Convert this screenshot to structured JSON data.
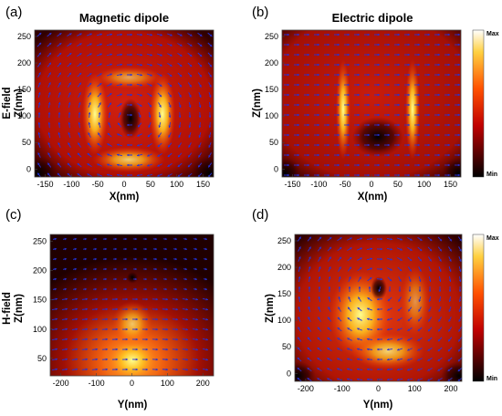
{
  "figure": {
    "row_labels": [
      "E-field",
      "H-field"
    ],
    "colorbar": {
      "max_label": "Max",
      "min_label": "Min",
      "colormap": "hot"
    },
    "arrow_color": "#2233dd"
  },
  "chart_data": [
    {
      "panel": "(a)",
      "type": "heatmap",
      "title": "Magnetic dipole",
      "xlabel": "X(nm)",
      "ylabel": "Z(nm)",
      "xlim": [
        -170,
        170
      ],
      "ylim": [
        -15,
        262
      ],
      "xticks": [
        "-150",
        "-100",
        "-50",
        "0",
        "50",
        "100",
        "150"
      ],
      "yticks": [
        "0",
        "50",
        "100",
        "150",
        "200",
        "250"
      ],
      "field": "E-field",
      "vector_pattern": "circulating loop around x=0, z=90",
      "colorbar": false
    },
    {
      "panel": "(b)",
      "type": "heatmap",
      "title": "Electric dipole",
      "xlabel": "X(nm)",
      "ylabel": "Z(nm)",
      "xlim": [
        -170,
        170
      ],
      "ylim": [
        -15,
        262
      ],
      "xticks": [
        "-150",
        "-100",
        "-50",
        "0",
        "50",
        "100",
        "150"
      ],
      "yticks": [
        "0",
        "50",
        "100",
        "150",
        "200",
        "250"
      ],
      "field": "E-field",
      "vector_pattern": "uniform horizontal, pointing +x",
      "colorbar": true
    },
    {
      "panel": "(c)",
      "type": "heatmap",
      "title": "",
      "xlabel": "Y(nm)",
      "ylabel": "Z(nm)",
      "xlim": [
        -230,
        230
      ],
      "ylim": [
        20,
        262
      ],
      "xticks": [
        "-200",
        "-100",
        "0",
        "100",
        "200"
      ],
      "yticks": [
        "50",
        "100",
        "150",
        "200",
        "250"
      ],
      "field": "H-field",
      "vector_pattern": "horizontal, strongest near bottom center",
      "colorbar": false
    },
    {
      "panel": "(d)",
      "type": "heatmap",
      "title": "",
      "xlabel": "Y(nm)",
      "ylabel": "Z(nm)",
      "xlim": [
        -230,
        230
      ],
      "ylim": [
        -15,
        262
      ],
      "xticks": [
        "-200",
        "-100",
        "0",
        "100",
        "200"
      ],
      "yticks": [
        "0",
        "50",
        "100",
        "150",
        "200",
        "250"
      ],
      "field": "H-field",
      "vector_pattern": "circulating loop around y=0, z=155",
      "colorbar": true
    }
  ]
}
